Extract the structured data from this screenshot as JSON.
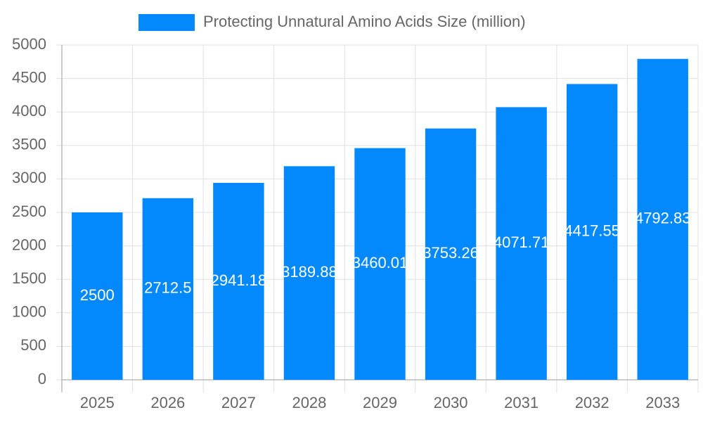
{
  "chart_data": {
    "type": "bar",
    "categories": [
      "2025",
      "2026",
      "2027",
      "2028",
      "2029",
      "2030",
      "2031",
      "2032",
      "2033"
    ],
    "series": [
      {
        "name": "Protecting Unnatural Amino Acids Size (million)",
        "color": "#0389fb",
        "values": [
          2500,
          2712.5,
          2941.18,
          3189.88,
          3460.01,
          3753.26,
          4071.71,
          4417.55,
          4792.83
        ]
      }
    ],
    "ylim": [
      0,
      5000
    ],
    "yticks": [
      0,
      500,
      1000,
      1500,
      2000,
      2500,
      3000,
      3500,
      4000,
      4500,
      5000
    ],
    "grid": true,
    "legend": "top"
  }
}
